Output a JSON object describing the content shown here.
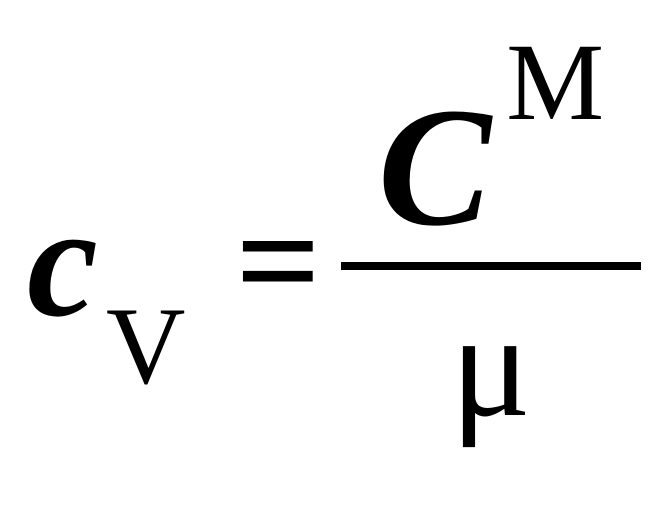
{
  "equation": {
    "lhs": {
      "variable": "c",
      "subscript": "V"
    },
    "operator": "=",
    "rhs": {
      "numerator": {
        "variable": "C",
        "superscript": "M"
      },
      "denominator": "μ"
    },
    "colors": {
      "text": "#000000",
      "background": "#ffffff",
      "line": "#000000"
    },
    "fontsize": {
      "main": 160,
      "subscript": 110,
      "superscript": 110,
      "operator": 150,
      "numerator_main": 170,
      "denominator": 150
    },
    "line_thickness": 8
  }
}
